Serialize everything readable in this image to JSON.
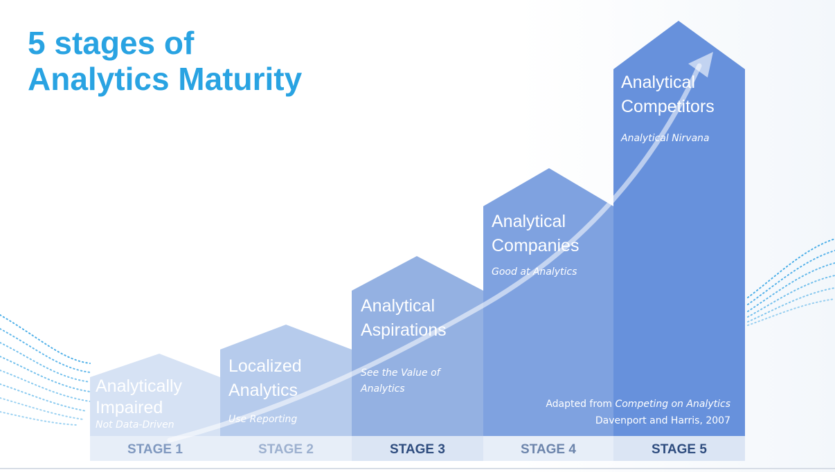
{
  "title": {
    "line1": "5 stages of",
    "line2": "Analytics Maturity"
  },
  "stages": [
    {
      "label": "STAGE 1",
      "name_line1": "Analytically",
      "name_line2": "Impaired",
      "description": "Not Data-Driven",
      "color": "#d6e2f4",
      "label_color": "#7f98bf"
    },
    {
      "label": "STAGE 2",
      "name_line1": "Localized",
      "name_line2": "Analytics",
      "description": "Use Reporting",
      "color": "#b6cbec",
      "label_color": "#9cb0cf"
    },
    {
      "label": "STAGE 3",
      "name_line1": "Analytical",
      "name_line2": "Aspirations",
      "description_line1": "See the Value of",
      "description_line2": "Analytics",
      "color": "#94b1e2",
      "label_color": "#2e4c7e"
    },
    {
      "label": "STAGE 4",
      "name_line1": "Analytical",
      "name_line2": "Companies",
      "description": "Good at Analytics",
      "color": "#7fa2e0",
      "label_color": "#6c84ab"
    },
    {
      "label": "STAGE 5",
      "name_line1": "Analytical",
      "name_line2": "Competitors",
      "description": "Analytical Nirvana",
      "color": "#6791dc",
      "label_color": "#2e4c7e"
    }
  ],
  "credit": {
    "prefix": "Adapted from ",
    "book": "Competing on Analytics",
    "authors": "Davenport and Harris, 2007"
  },
  "colors": {
    "title": "#29a3e2",
    "stage_band": "#e7eef8",
    "arrow": "#ffffff"
  }
}
